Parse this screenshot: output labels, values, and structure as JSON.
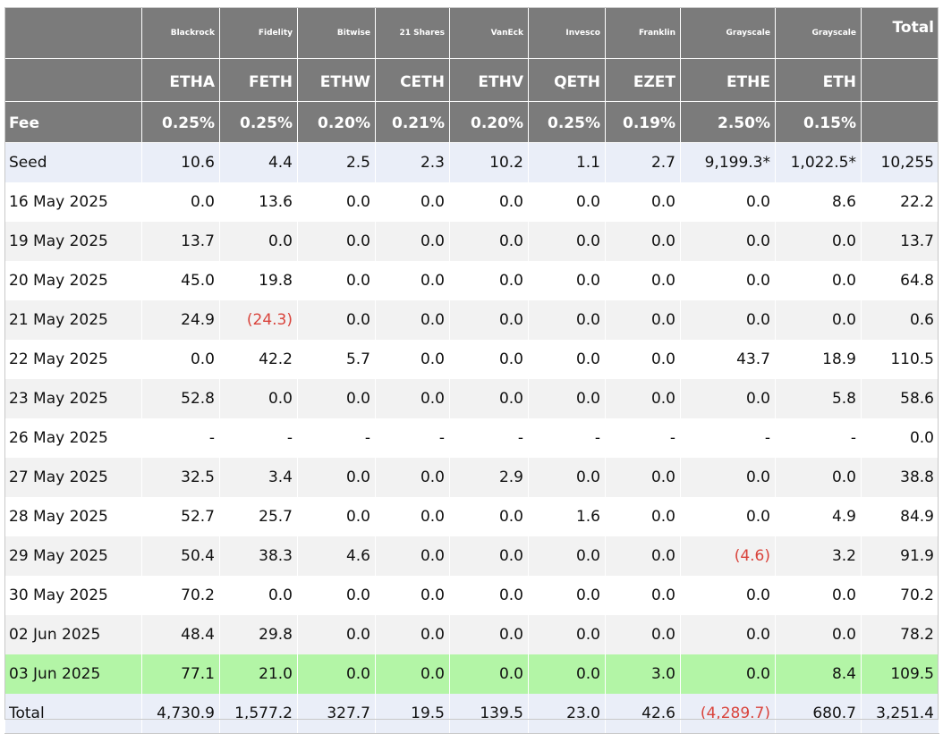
{
  "issuers": [
    "Blackrock",
    "Fidelity",
    "Bitwise",
    "21 Shares",
    "VanEck",
    "Invesco",
    "Franklin",
    "Grayscale",
    "Grayscale"
  ],
  "total_header": "Total",
  "tickers": [
    "ETHA",
    "FETH",
    "ETHW",
    "CETH",
    "ETHV",
    "QETH",
    "EZET",
    "ETHE",
    "ETH"
  ],
  "fee_label": "Fee",
  "fees": [
    "0.25%",
    "0.25%",
    "0.20%",
    "0.21%",
    "0.20%",
    "0.25%",
    "0.19%",
    "2.50%",
    "0.15%"
  ],
  "rows": [
    {
      "label": "Seed",
      "values": [
        "10.6",
        "4.4",
        "2.5",
        "2.3",
        "10.2",
        "1.1",
        "2.7",
        "9,199.3*",
        "1,022.5*"
      ],
      "total": "10,255",
      "style": "seed"
    },
    {
      "label": "16 May 2025",
      "values": [
        "0.0",
        "13.6",
        "0.0",
        "0.0",
        "0.0",
        "0.0",
        "0.0",
        "0.0",
        "8.6"
      ],
      "total": "22.2",
      "style": "odd"
    },
    {
      "label": "19 May 2025",
      "values": [
        "13.7",
        "0.0",
        "0.0",
        "0.0",
        "0.0",
        "0.0",
        "0.0",
        "0.0",
        "0.0"
      ],
      "total": "13.7",
      "style": "even"
    },
    {
      "label": "20 May 2025",
      "values": [
        "45.0",
        "19.8",
        "0.0",
        "0.0",
        "0.0",
        "0.0",
        "0.0",
        "0.0",
        "0.0"
      ],
      "total": "64.8",
      "style": "odd"
    },
    {
      "label": "21 May 2025",
      "values": [
        "24.9",
        "(24.3)",
        "0.0",
        "0.0",
        "0.0",
        "0.0",
        "0.0",
        "0.0",
        "0.0"
      ],
      "total": "0.6",
      "style": "even"
    },
    {
      "label": "22 May 2025",
      "values": [
        "0.0",
        "42.2",
        "5.7",
        "0.0",
        "0.0",
        "0.0",
        "0.0",
        "43.7",
        "18.9"
      ],
      "total": "110.5",
      "style": "odd"
    },
    {
      "label": "23 May 2025",
      "values": [
        "52.8",
        "0.0",
        "0.0",
        "0.0",
        "0.0",
        "0.0",
        "0.0",
        "0.0",
        "5.8"
      ],
      "total": "58.6",
      "style": "even"
    },
    {
      "label": "26 May 2025",
      "values": [
        "-",
        "-",
        "-",
        "-",
        "-",
        "-",
        "-",
        "-",
        "-"
      ],
      "total": "0.0",
      "style": "odd"
    },
    {
      "label": "27 May 2025",
      "values": [
        "32.5",
        "3.4",
        "0.0",
        "0.0",
        "2.9",
        "0.0",
        "0.0",
        "0.0",
        "0.0"
      ],
      "total": "38.8",
      "style": "even"
    },
    {
      "label": "28 May 2025",
      "values": [
        "52.7",
        "25.7",
        "0.0",
        "0.0",
        "0.0",
        "1.6",
        "0.0",
        "0.0",
        "4.9"
      ],
      "total": "84.9",
      "style": "odd"
    },
    {
      "label": "29 May 2025",
      "values": [
        "50.4",
        "38.3",
        "4.6",
        "0.0",
        "0.0",
        "0.0",
        "0.0",
        "(4.6)",
        "3.2"
      ],
      "total": "91.9",
      "style": "even"
    },
    {
      "label": "30 May 2025",
      "values": [
        "70.2",
        "0.0",
        "0.0",
        "0.0",
        "0.0",
        "0.0",
        "0.0",
        "0.0",
        "0.0"
      ],
      "total": "70.2",
      "style": "odd"
    },
    {
      "label": "02 Jun 2025",
      "values": [
        "48.4",
        "29.8",
        "0.0",
        "0.0",
        "0.0",
        "0.0",
        "0.0",
        "0.0",
        "0.0"
      ],
      "total": "78.2",
      "style": "even"
    },
    {
      "label": "03 Jun 2025",
      "values": [
        "77.1",
        "21.0",
        "0.0",
        "0.0",
        "0.0",
        "0.0",
        "3.0",
        "0.0",
        "8.4"
      ],
      "total": "109.5",
      "style": "highlight"
    },
    {
      "label": "Total",
      "values": [
        "4,730.9",
        "1,577.2",
        "327.7",
        "19.5",
        "139.5",
        "23.0",
        "42.6",
        "(4,289.7)",
        "680.7"
      ],
      "total": "3,251.4",
      "style": "total"
    }
  ],
  "colors": {
    "header_bg": "#7b7b7b",
    "seed_total_bg": "#eaeef8",
    "stripe_bg": "#f2f2f2",
    "highlight_bg": "#b3f5a6",
    "negative_text": "#d9433b"
  }
}
